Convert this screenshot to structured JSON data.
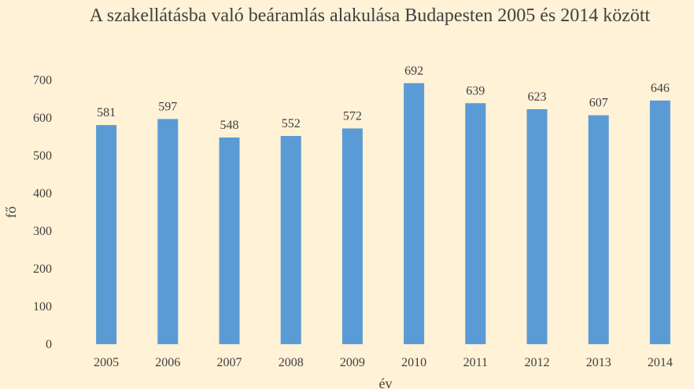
{
  "chart_data": {
    "type": "bar",
    "title": "A szakellátásba való beáramlás alakulása Budapesten 2005 és 2014 között",
    "xlabel": "év",
    "ylabel": "fő",
    "categories": [
      "2005",
      "2006",
      "2007",
      "2008",
      "2009",
      "2010",
      "2011",
      "2012",
      "2013",
      "2014"
    ],
    "values": [
      581,
      597,
      548,
      552,
      572,
      692,
      639,
      623,
      607,
      646
    ],
    "data_labels": [
      "581",
      "597",
      "548",
      "552",
      "572",
      "692",
      "639",
      "623",
      "607",
      "646"
    ],
    "ylim": [
      0,
      700
    ],
    "yticks": [
      "0",
      "100",
      "200",
      "300",
      "400",
      "500",
      "600",
      "700"
    ],
    "grid": false,
    "legend": "none",
    "bar_color": "#5B9BD5",
    "background_color": "#FFF2D6",
    "text_color": "#404040"
  }
}
